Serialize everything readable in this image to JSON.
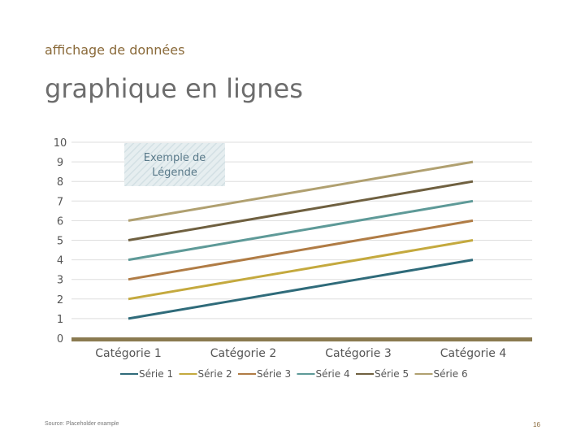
{
  "header": {
    "eyebrow": "affichage de données",
    "title": "graphique en lignes"
  },
  "footer": {
    "source": "Source: Placeholder example",
    "page_number": "16"
  },
  "chart_data": {
    "type": "line",
    "title": "",
    "xlabel": "",
    "ylabel": "",
    "categories": [
      "Catégorie 1",
      "Catégorie 2",
      "Catégorie 3",
      "Catégorie 4"
    ],
    "ylim": [
      0,
      10
    ],
    "yticks": [
      "0",
      "1",
      "2",
      "3",
      "4",
      "5",
      "6",
      "7",
      "8",
      "9",
      "10"
    ],
    "grid": true,
    "legend_position": "bottom",
    "annotation": "Exemple de Légende",
    "series": [
      {
        "name": "Série 1",
        "values": [
          1,
          2,
          3,
          4
        ],
        "color": "#2f6b7a"
      },
      {
        "name": "Série 2",
        "values": [
          2,
          3,
          4,
          5
        ],
        "color": "#c4a93e"
      },
      {
        "name": "Série 3",
        "values": [
          3,
          4,
          5,
          6
        ],
        "color": "#b07c45"
      },
      {
        "name": "Série 4",
        "values": [
          4,
          5,
          6,
          7
        ],
        "color": "#5e9a98"
      },
      {
        "name": "Série 5",
        "values": [
          5,
          6,
          7,
          8
        ],
        "color": "#6f6040"
      },
      {
        "name": "Série 6",
        "values": [
          6,
          7,
          8,
          9
        ],
        "color": "#b0a070"
      }
    ],
    "baseline_color": "#8a7a50"
  }
}
